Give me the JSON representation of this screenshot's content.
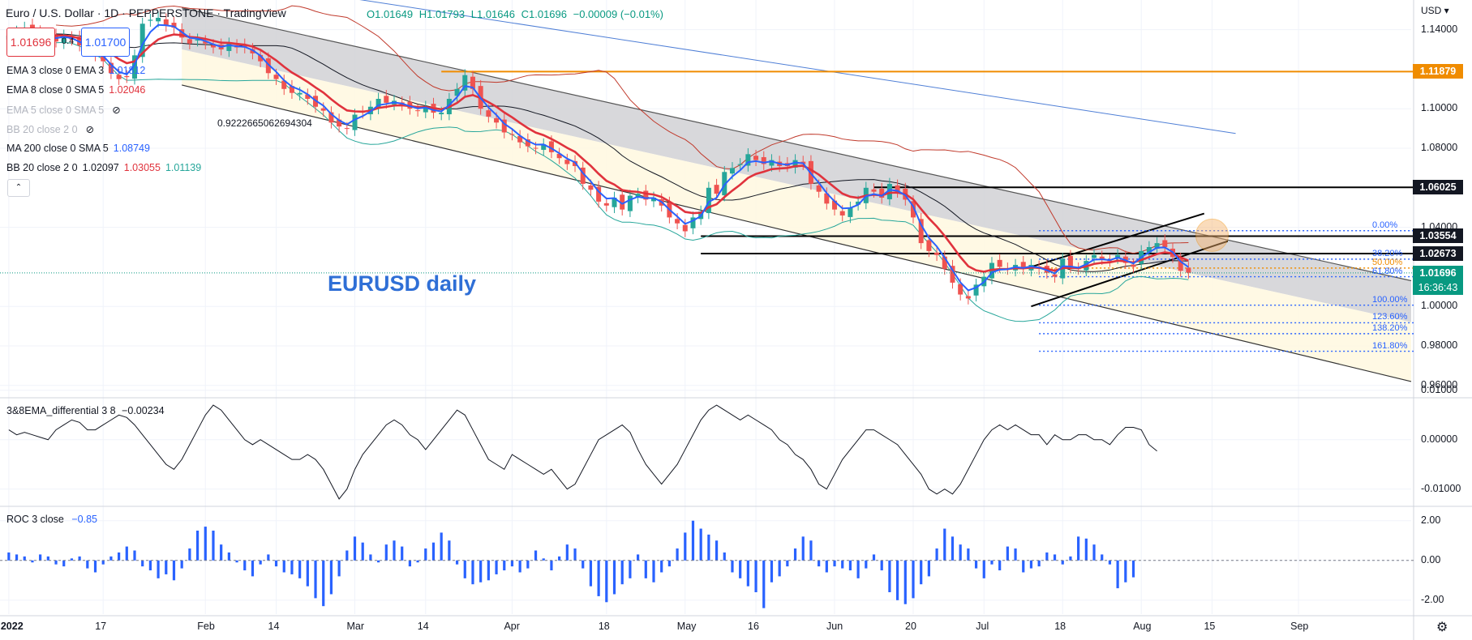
{
  "header": {
    "title": "Euro / U.S. Dollar · 1D · PEPPERSTONE · TradingView",
    "ohlc": {
      "o": "O1.01649",
      "h": "H1.01793",
      "l": "L1.01646",
      "c": "C1.01696",
      "chg": "−0.00009 (−0.01%)"
    },
    "sell_price": "1.01696",
    "buy_price": "1.01700",
    "spread": "0.4",
    "currency": "USD"
  },
  "legend": [
    {
      "label": "EMA 3 close 0 EMA 3",
      "values": [
        {
          "v": "1.01812",
          "color": "#2962ff"
        }
      ]
    },
    {
      "label": "EMA 8 close 0 SMA 5",
      "values": [
        {
          "v": "1.02046",
          "color": "#e0333d"
        }
      ]
    },
    {
      "label": "EMA 5 close 0 SMA 5",
      "values": [],
      "hidden": true
    },
    {
      "label": "BB 20 close 2 0",
      "values": [],
      "hidden": true
    },
    {
      "label": "MA 200 close 0 SMA 5",
      "values": [
        {
          "v": "1.08749",
          "color": "#2962ff"
        }
      ]
    },
    {
      "label": "BB 20 close 2 0",
      "values": [
        {
          "v": "1.02097",
          "color": "#131722"
        },
        {
          "v": "1.03055",
          "color": "#e0333d"
        },
        {
          "v": "1.01139",
          "color": "#26a69a"
        }
      ]
    }
  ],
  "annotations": {
    "ratio_note": "0.9222665062694304",
    "chart_label": "EURUSD daily"
  },
  "fib_levels": [
    {
      "label": "0.00%",
      "value": 1.0383,
      "color": "#2962ff"
    },
    {
      "label": "38.20%",
      "value": 1.0239,
      "color": "#2962ff"
    },
    {
      "label": "50.00%",
      "value": 1.0194,
      "color": "#f08c00"
    },
    {
      "label": "61.80%",
      "value": 1.015,
      "color": "#2962ff"
    },
    {
      "label": "100.00%",
      "value": 1.0006,
      "color": "#2962ff"
    },
    {
      "label": "123.60%",
      "value": 0.9917,
      "color": "#2962ff"
    },
    {
      "label": "138.20%",
      "value": 0.9862,
      "color": "#2962ff"
    },
    {
      "label": "161.80%",
      "value": 0.9773,
      "color": "#2962ff"
    }
  ],
  "price_tags": [
    {
      "text": "1.11879",
      "value": 1.11879,
      "bg": "#f08c00"
    },
    {
      "text": "1.06025",
      "value": 1.06025,
      "bg": "#131722"
    },
    {
      "text": "1.03554",
      "value": 1.03554,
      "bg": "#131722"
    },
    {
      "text": "1.02673",
      "value": 1.02673,
      "bg": "#131722"
    },
    {
      "text": "1.01696",
      "value": 1.01696,
      "bg": "#089981"
    }
  ],
  "countdown": "16:36:43",
  "chart_data": [
    {
      "type": "candlestick",
      "title": "Euro / U.S. Dollar · 1D · PEPPERSTONE",
      "ylabel": "USD",
      "ylim": [
        0.955,
        1.155
      ],
      "yticks": [
        "1.14000",
        "1.10000",
        "1.08000",
        "1.04000",
        "1.00000",
        "0.98000",
        "0.96000"
      ],
      "ytick_values": [
        1.14,
        1.1,
        1.08,
        1.04,
        1.0,
        0.98,
        0.96
      ],
      "close": [
        1.137,
        1.139,
        1.141,
        1.14,
        1.138,
        1.136,
        1.134,
        1.137,
        1.135,
        1.132,
        1.13,
        1.127,
        1.124,
        1.118,
        1.115,
        1.116,
        1.127,
        1.143,
        1.145,
        1.146,
        1.142,
        1.141,
        1.136,
        1.133,
        1.135,
        1.133,
        1.131,
        1.13,
        1.133,
        1.131,
        1.131,
        1.128,
        1.124,
        1.118,
        1.115,
        1.11,
        1.108,
        1.108,
        1.105,
        1.101,
        1.099,
        1.093,
        1.091,
        1.09,
        1.097,
        1.098,
        1.101,
        1.105,
        1.103,
        1.104,
        1.102,
        1.1,
        1.099,
        1.101,
        1.098,
        1.098,
        1.105,
        1.11,
        1.117,
        1.11,
        1.1,
        1.096,
        1.093,
        1.088,
        1.087,
        1.083,
        1.081,
        1.08,
        1.082,
        1.078,
        1.075,
        1.072,
        1.071,
        1.062,
        1.059,
        1.053,
        1.051,
        1.055,
        1.049,
        1.056,
        1.057,
        1.054,
        1.055,
        1.051,
        1.045,
        1.042,
        1.038,
        1.045,
        1.048,
        1.06,
        1.057,
        1.068,
        1.07,
        1.072,
        1.077,
        1.074,
        1.072,
        1.074,
        1.071,
        1.071,
        1.074,
        1.072,
        1.062,
        1.058,
        1.052,
        1.049,
        1.046,
        1.05,
        1.053,
        1.06,
        1.058,
        1.055,
        1.062,
        1.058,
        1.054,
        1.045,
        1.032,
        1.028,
        1.026,
        1.019,
        1.012,
        1.006,
        1.004,
        1.011,
        1.015,
        1.022,
        1.02,
        1.019,
        1.021,
        1.019,
        1.021,
        1.019,
        1.017,
        1.015,
        1.024,
        1.02,
        1.019,
        1.023,
        1.026,
        1.024,
        1.023,
        1.026,
        1.022,
        1.02,
        1.028,
        1.03,
        1.032,
        1.03,
        1.025,
        1.018,
        1.017
      ],
      "x_ticks": [
        "2022",
        "17",
        "Feb",
        "14",
        "Mar",
        "14",
        "Apr",
        "18",
        "May",
        "16",
        "Jun",
        "20",
        "Jul",
        "18",
        "Aug",
        "15",
        "Sep"
      ],
      "x_tick_index": [
        0,
        12,
        25,
        34,
        44,
        53,
        64,
        76,
        86,
        95,
        105,
        115,
        124,
        134,
        144,
        153,
        164
      ],
      "overlays": {
        "ema3": "#2962ff",
        "ema8": "#e0333d",
        "ma200": "#4f7fd6",
        "bb_basis": "#131722",
        "bb_upper": "#c0392b",
        "bb_lower": "#26a69a"
      },
      "horizontal_levels": [
        {
          "value": 1.11879,
          "color": "#f08c00"
        },
        {
          "value": 1.06025,
          "color": "#000000"
        },
        {
          "value": 1.03554,
          "color": "#000000"
        },
        {
          "value": 1.02673,
          "color": "#000000"
        }
      ]
    },
    {
      "type": "line",
      "title": "3&8EMA_differential 3 8",
      "current": "−0.00234",
      "ylim": [
        -0.013,
        0.008
      ],
      "yticks": [
        "0.01000",
        "0.00000",
        "-0.01000"
      ],
      "ytick_values": [
        0.01,
        0.0,
        -0.01
      ],
      "values": [
        0.002,
        0.001,
        0.0015,
        0.001,
        0.0005,
        0.0,
        0.002,
        0.003,
        0.004,
        0.0035,
        0.002,
        0.002,
        0.003,
        0.004,
        0.005,
        0.0045,
        0.003,
        0.001,
        -0.001,
        -0.003,
        -0.005,
        -0.006,
        -0.004,
        -0.001,
        0.002,
        0.005,
        0.007,
        0.006,
        0.004,
        0.002,
        0.0,
        -0.001,
        0.0,
        -0.001,
        -0.002,
        -0.003,
        -0.004,
        -0.004,
        -0.003,
        -0.004,
        -0.006,
        -0.009,
        -0.012,
        -0.01,
        -0.006,
        -0.003,
        -0.001,
        0.001,
        0.003,
        0.004,
        0.003,
        0.001,
        0.0,
        -0.002,
        0.0,
        0.002,
        0.004,
        0.006,
        0.005,
        0.002,
        -0.001,
        -0.004,
        -0.005,
        -0.006,
        -0.003,
        -0.004,
        -0.005,
        -0.006,
        -0.007,
        -0.006,
        -0.008,
        -0.01,
        -0.009,
        -0.006,
        -0.003,
        0.0,
        0.001,
        0.002,
        0.003,
        0.0015,
        -0.002,
        -0.005,
        -0.007,
        -0.009,
        -0.007,
        -0.005,
        -0.002,
        0.001,
        0.004,
        0.006,
        0.007,
        0.006,
        0.005,
        0.004,
        0.005,
        0.004,
        0.003,
        0.002,
        0.0,
        -0.001,
        -0.003,
        -0.004,
        -0.006,
        -0.009,
        -0.01,
        -0.007,
        -0.004,
        -0.002,
        0.0,
        0.002,
        0.002,
        0.001,
        0.0,
        -0.001,
        -0.003,
        -0.005,
        -0.007,
        -0.01,
        -0.011,
        -0.01,
        -0.011,
        -0.009,
        -0.006,
        -0.003,
        0.0,
        0.002,
        0.003,
        0.002,
        0.003,
        0.002,
        0.001,
        0.001,
        -0.001,
        0.001,
        0.0,
        0.0,
        0.001,
        0.001,
        0.0,
        0.0,
        -0.001,
        0.001,
        0.0025,
        0.0025,
        0.002,
        -0.001,
        -0.0023
      ]
    },
    {
      "type": "bar",
      "title": "ROC 3 close",
      "current": "−0.85",
      "ylim": [
        -2.7,
        2.6
      ],
      "yticks": [
        "2.00",
        "0.00",
        "-2.00"
      ],
      "ytick_values": [
        2.0,
        0.0,
        -2.0
      ],
      "values": [
        0.4,
        0.3,
        0.2,
        -0.1,
        0.3,
        0.2,
        -0.2,
        -0.3,
        0.1,
        0.2,
        -0.4,
        -0.6,
        -0.2,
        0.2,
        0.4,
        0.7,
        0.5,
        -0.3,
        -0.5,
        -0.9,
        -0.7,
        -1.0,
        -0.4,
        0.6,
        1.5,
        1.7,
        1.5,
        0.8,
        0.4,
        -0.1,
        -0.5,
        -0.8,
        -0.2,
        0.3,
        -0.3,
        -0.6,
        -0.7,
        -0.9,
        -1.3,
        -1.9,
        -2.3,
        -1.7,
        -0.8,
        0.5,
        1.2,
        0.9,
        0.3,
        -0.1,
        0.8,
        1.0,
        0.7,
        -0.3,
        -0.1,
        0.6,
        0.9,
        1.4,
        1.0,
        -0.2,
        -0.9,
        -1.2,
        -1.1,
        -1.0,
        -0.7,
        -0.5,
        -0.3,
        -0.6,
        -0.4,
        0.5,
        0.1,
        -0.5,
        0.2,
        0.8,
        0.6,
        -0.4,
        -1.3,
        -1.8,
        -2.1,
        -1.7,
        -1.2,
        -0.9,
        0.3,
        -0.9,
        -1.1,
        -0.6,
        -0.3,
        0.6,
        1.4,
        2.0,
        1.6,
        1.3,
        1.0,
        0.4,
        -0.6,
        -0.9,
        -1.3,
        -1.6,
        -2.4,
        -1.1,
        -0.8,
        -0.3,
        0.6,
        1.2,
        1.0,
        -0.3,
        -0.6,
        -0.3,
        -0.4,
        -0.5,
        -0.9,
        -0.4,
        0.3,
        -0.5,
        -1.6,
        -2.0,
        -2.2,
        -1.9,
        -1.2,
        -0.8,
        0.6,
        1.6,
        1.2,
        0.8,
        0.6,
        -0.4,
        -0.9,
        -0.2,
        -0.5,
        0.7,
        0.6,
        -0.6,
        -0.4,
        -0.3,
        0.4,
        0.3,
        -0.2,
        0.2,
        1.2,
        1.1,
        0.8,
        0.3,
        -0.2,
        -1.4,
        -1.1,
        -0.85
      ]
    }
  ]
}
